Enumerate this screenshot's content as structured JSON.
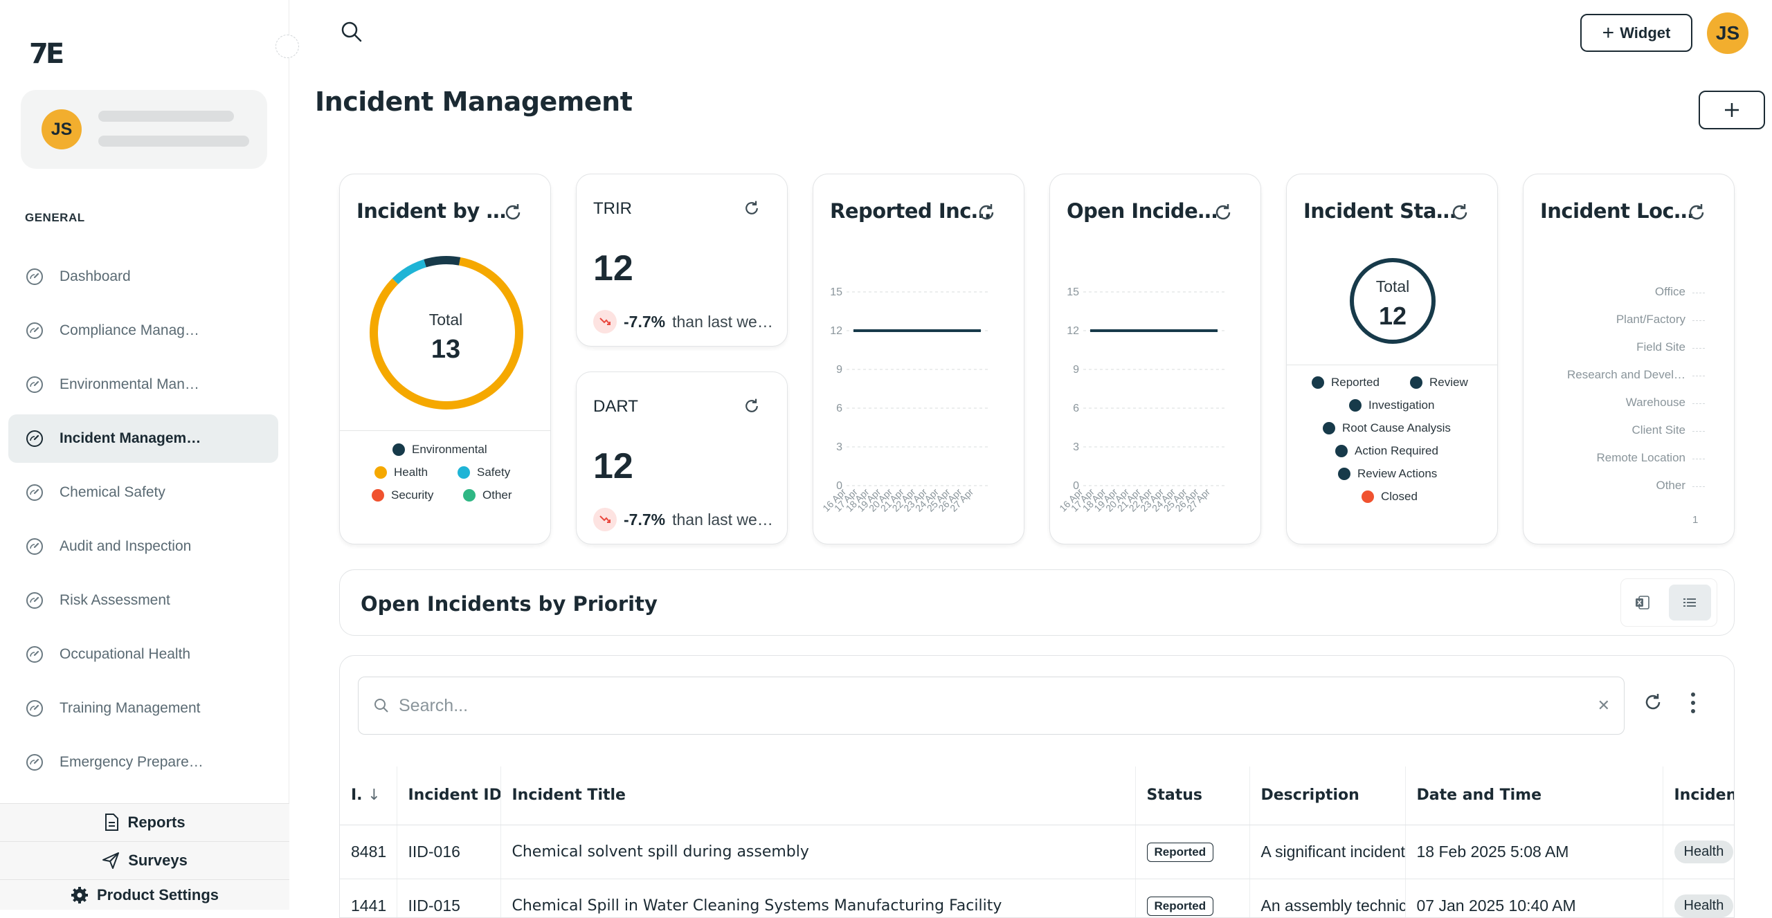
{
  "sidebar": {
    "logo": "7E",
    "avatar_initials": "JS",
    "section_label": "GENERAL",
    "items": [
      {
        "label": "Dashboard"
      },
      {
        "label": "Compliance Manag…"
      },
      {
        "label": "Environmental Man…"
      },
      {
        "label": "Incident Managem…",
        "active": true
      },
      {
        "label": "Chemical Safety"
      },
      {
        "label": "Audit and Inspection"
      },
      {
        "label": "Risk Assessment"
      },
      {
        "label": "Occupational Health"
      },
      {
        "label": "Training Management"
      },
      {
        "label": "Emergency Prepare…"
      }
    ],
    "footer": {
      "reports": "Reports",
      "surveys": "Surveys",
      "settings": "Product Settings"
    }
  },
  "header": {
    "widget_label": "Widget",
    "avatar_initials": "JS"
  },
  "page_title": "Incident Management",
  "cards": {
    "incident_by": {
      "title": "Incident by …",
      "total_label": "Total",
      "total_value": "13",
      "legend": [
        "Environmental",
        "Health",
        "Safety",
        "Security",
        "Other"
      ],
      "colors": {
        "Environmental": "#173a4a",
        "Health": "#f5a800",
        "Safety": "#1fb4d6",
        "Security": "#f0522f",
        "Other": "#2fb784"
      }
    },
    "trir": {
      "label": "TRIR",
      "value": "12",
      "trend_pct": "-7.7%",
      "trend_text": "than last we…"
    },
    "dart": {
      "label": "DART",
      "value": "12",
      "trend_pct": "-7.7%",
      "trend_text": "than last we…"
    },
    "reported": {
      "title": "Reported Inc…"
    },
    "open": {
      "title": "Open Incide…"
    },
    "status": {
      "title": "Incident Sta…",
      "total_label": "Total",
      "total_value": "12",
      "legend": [
        "Reported",
        "Review",
        "Investigation",
        "Root Cause Analysis",
        "Action Required",
        "Review Actions",
        "Closed"
      ]
    },
    "location": {
      "title": "Incident Loc…",
      "labels": [
        "Office",
        "Plant/Factory",
        "Field Site",
        "Research and Devel…",
        "Warehouse",
        "Client Site",
        "Remote Location",
        "Other"
      ],
      "axis_tick": "1"
    }
  },
  "chart_data": [
    {
      "type": "pie",
      "title": "Incident by …",
      "categories": [
        "Environmental",
        "Health",
        "Safety",
        "Security",
        "Other"
      ],
      "values": [
        1,
        11,
        1,
        0,
        0
      ]
    },
    {
      "type": "line",
      "title": "Reported Inc…",
      "x": [
        "16 Apr",
        "17 Apr",
        "18 Apr",
        "19 Apr",
        "20 Apr",
        "21 Apr",
        "22 Apr",
        "23 Apr",
        "24 Apr",
        "25 Apr",
        "26 Apr",
        "27 Apr"
      ],
      "values": [
        12,
        12,
        12,
        12,
        12,
        12,
        12,
        12,
        12,
        12,
        12,
        12
      ],
      "yticks": [
        0,
        3,
        6,
        9,
        12,
        15
      ],
      "ylim": [
        0,
        15
      ]
    },
    {
      "type": "line",
      "title": "Open Incide…",
      "x": [
        "16 Apr",
        "17 Apr",
        "18 Apr",
        "19 Apr",
        "20 Apr",
        "21 Apr",
        "22 Apr",
        "23 Apr",
        "24 Apr",
        "25 Apr",
        "26 Apr",
        "27 Apr"
      ],
      "values": [
        12,
        12,
        12,
        12,
        12,
        12,
        12,
        12,
        12,
        12,
        12,
        12
      ],
      "yticks": [
        0,
        3,
        6,
        9,
        12,
        15
      ],
      "ylim": [
        0,
        15
      ]
    }
  ],
  "priority": {
    "title": "Open Incidents by Priority"
  },
  "table": {
    "search_placeholder": "Search...",
    "columns": [
      "I.",
      "Incident ID",
      "Incident Title",
      "Status",
      "Description",
      "Date and Time",
      "Incident Type"
    ],
    "rows": [
      {
        "id_num": "8481",
        "incident_id": "IID-016",
        "title": "Chemical solvent spill during assembly",
        "status": "Reported",
        "description": "A significant incident",
        "datetime": "18 Feb 2025 5:08 AM",
        "type": "Health"
      },
      {
        "id_num": "1441",
        "incident_id": "IID-015",
        "title": "Chemical Spill in Water Cleaning Systems Manufacturing Facility",
        "status": "Reported",
        "description": "An assembly technician",
        "datetime": "07 Jan 2025 10:40 AM",
        "type": "Health"
      }
    ]
  }
}
